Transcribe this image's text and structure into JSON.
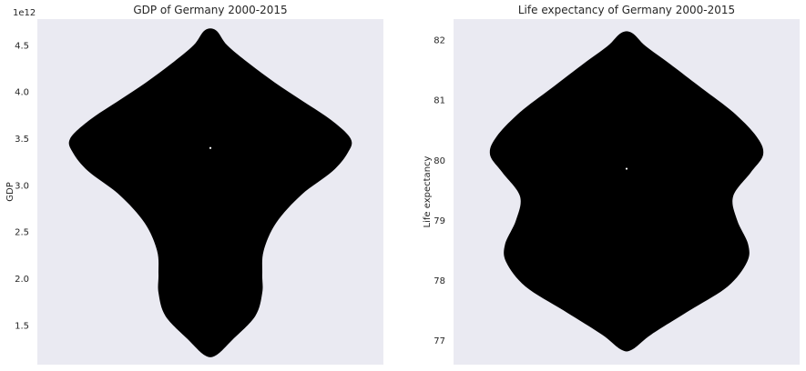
{
  "colors": {
    "plot_bg": "#eaeaf2",
    "violin_fill": "#000000",
    "median_mark": "#ffffff",
    "text": "#262626"
  },
  "chart_data": [
    {
      "type": "violin",
      "title": "GDP of Germany 2000-2015",
      "xlabel": "",
      "ylabel": "GDP",
      "axis_offset_label": "1e12",
      "ylim": [
        1.08,
        4.78
      ],
      "yticks": [
        1.5,
        2.0,
        2.5,
        3.0,
        3.5,
        4.0,
        4.5
      ],
      "ytick_labels": [
        "1.5",
        "2.0",
        "2.5",
        "3.0",
        "3.5",
        "4.0",
        "4.5"
      ],
      "grid": false,
      "range": [
        1.18,
        4.66
      ],
      "median": 3.4,
      "density_profile": {
        "y": [
          1.18,
          1.35,
          1.6,
          1.85,
          2.05,
          2.3,
          2.6,
          2.9,
          3.15,
          3.35,
          3.5,
          3.7,
          3.9,
          4.1,
          4.3,
          4.5,
          4.66
        ],
        "half_width": [
          0.04,
          0.16,
          0.32,
          0.37,
          0.37,
          0.38,
          0.47,
          0.65,
          0.87,
          0.98,
          1.0,
          0.86,
          0.66,
          0.46,
          0.28,
          0.12,
          0.04
        ]
      }
    },
    {
      "type": "violin",
      "title": "Life expectancy of Germany 2000-2015",
      "xlabel": "",
      "ylabel": "Life expectancy",
      "ylim": [
        76.6,
        82.35
      ],
      "yticks": [
        77,
        78,
        79,
        80,
        81,
        82
      ],
      "ytick_labels": [
        "77",
        "78",
        "79",
        "80",
        "81",
        "82"
      ],
      "grid": false,
      "range": [
        76.85,
        82.12
      ],
      "median": 79.86,
      "density_profile": {
        "y": [
          76.85,
          77.1,
          77.5,
          77.9,
          78.3,
          78.6,
          79.0,
          79.4,
          79.8,
          80.1,
          80.4,
          80.8,
          81.2,
          81.6,
          81.9,
          82.12
        ],
        "half_width": [
          0.04,
          0.18,
          0.46,
          0.74,
          0.88,
          0.89,
          0.81,
          0.78,
          0.91,
          1.0,
          0.95,
          0.78,
          0.55,
          0.32,
          0.14,
          0.04
        ]
      }
    }
  ]
}
